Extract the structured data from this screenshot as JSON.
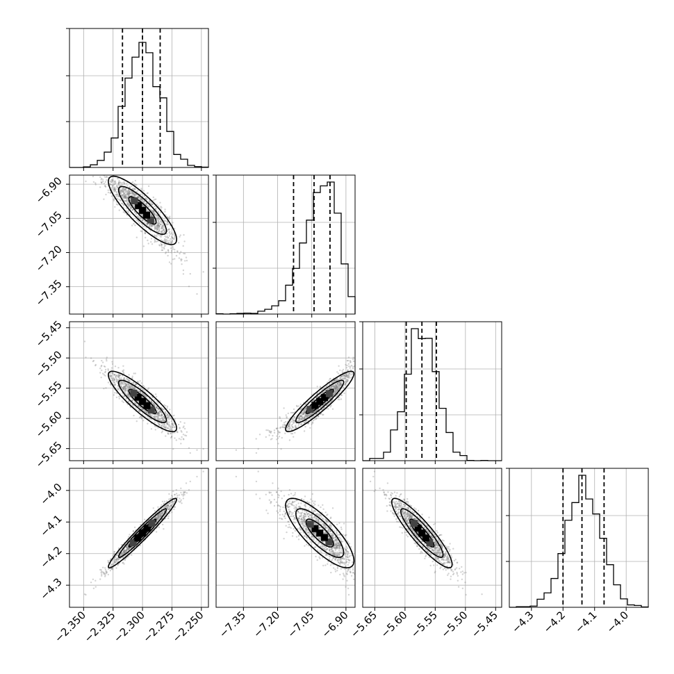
{
  "chart_data": {
    "type": "corner",
    "grid": true,
    "parameters": [
      {
        "range": [
          -2.362,
          -2.244
        ],
        "ticks": [
          -2.35,
          -2.325,
          -2.3,
          -2.275,
          -2.25
        ],
        "tick_labels": [
          "−2.350",
          "−2.325",
          "−2.300",
          "−2.275",
          "−2.250"
        ],
        "mean": -2.3,
        "sd": 0.0145,
        "quantiles": [
          -2.317,
          -2.3,
          -2.285
        ],
        "hist_peak": 0.9
      },
      {
        "range": [
          -7.47,
          -6.86
        ],
        "ticks": [
          -7.35,
          -7.2,
          -7.05,
          -6.9
        ],
        "tick_labels": [
          "−7.35",
          "−7.20",
          "−7.05",
          "−6.90"
        ],
        "mean": -7.015,
        "sd": 0.075,
        "skew": -0.35,
        "quantiles": [
          -7.13,
          -7.04,
          -6.97
        ],
        "hist_peak": 0.95
      },
      {
        "range": [
          -5.67,
          -5.44
        ],
        "ticks": [
          -5.65,
          -5.6,
          -5.55,
          -5.5,
          -5.45
        ],
        "tick_labels": [
          "−5.65",
          "−5.60",
          "−5.55",
          "−5.50",
          "−5.45"
        ],
        "mean": -5.572,
        "sd": 0.025,
        "quantiles": [
          -5.598,
          -5.572,
          -5.548
        ],
        "hist_peak": 0.95
      },
      {
        "range": [
          -4.37,
          -3.93
        ],
        "ticks": [
          -4.3,
          -4.2,
          -4.1,
          -4.0
        ],
        "tick_labels": [
          "−4.3",
          "−4.2",
          "−4.1",
          "−4.0"
        ],
        "mean": -4.135,
        "sd": 0.055,
        "quantiles": [
          -4.2,
          -4.14,
          -4.07
        ],
        "hist_peak": 0.95
      }
    ],
    "correlations": [
      [
        1.0,
        -0.85,
        -0.88,
        0.97
      ],
      [
        -0.85,
        1.0,
        0.92,
        -0.8
      ],
      [
        -0.88,
        0.92,
        1.0,
        -0.9
      ],
      [
        0.97,
        -0.8,
        -0.9,
        1.0
      ]
    ],
    "colors": {
      "axes": "#000000",
      "grid": "#b0b0b0",
      "scatter": "#808080"
    }
  }
}
